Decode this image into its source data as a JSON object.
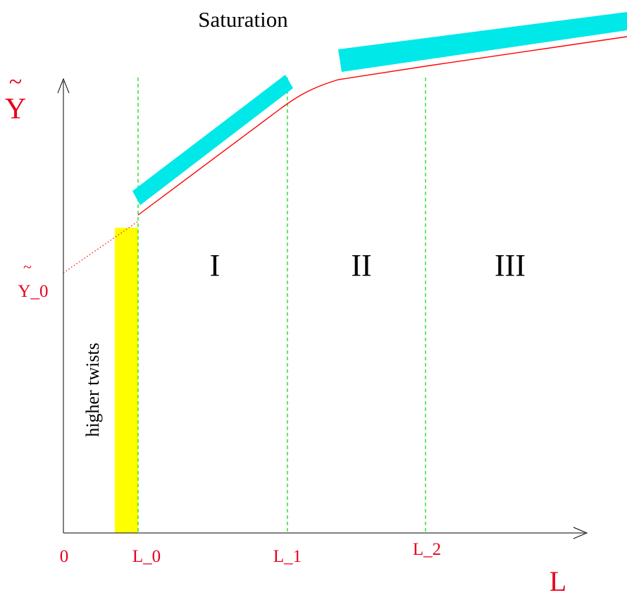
{
  "title": "Saturation",
  "axes": {
    "y_label_base": "Y",
    "y_label_tilde": "~",
    "x_label": "L",
    "origin_label": "0"
  },
  "y_intercept": {
    "tilde": "~",
    "label": "Y_0"
  },
  "x_ticks": [
    {
      "key": "L0",
      "label": "L_0"
    },
    {
      "key": "L1",
      "label": "L_1"
    },
    {
      "key": "L2",
      "label": "L_2"
    }
  ],
  "regions": [
    {
      "key": "I",
      "label": "I"
    },
    {
      "key": "II",
      "label": "II"
    },
    {
      "key": "III",
      "label": "III"
    }
  ],
  "band_label": "higher twists",
  "colors": {
    "axis": "#000000",
    "curve": "#ff0000",
    "red_text": "#e8001c",
    "divider": "#22dd22",
    "saturation_band": "#00e8e8",
    "higher_twist_band": "#ffff00"
  }
}
